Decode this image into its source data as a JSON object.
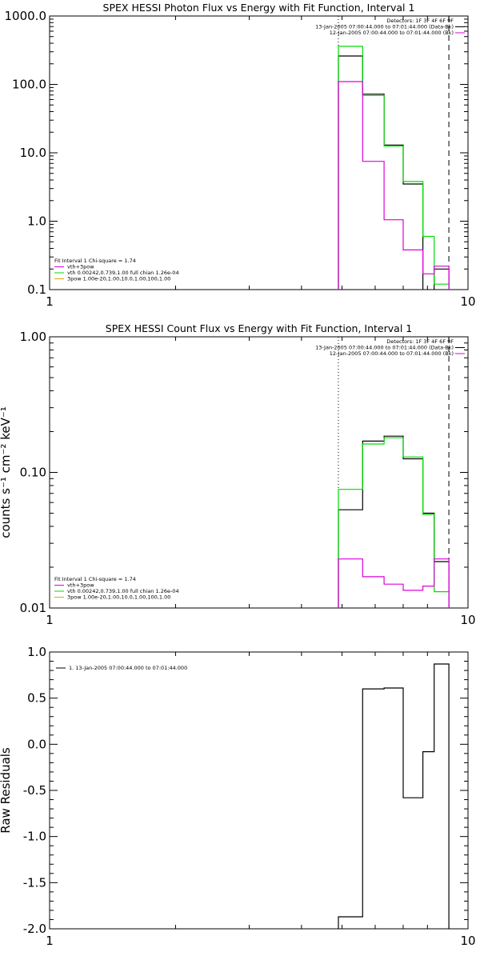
{
  "chart_data": [
    {
      "type": "line",
      "title": "SPEX HESSI Photon Flux vs Energy with Fit Function, Interval 1",
      "xlabel": "",
      "ylabel": "",
      "x_scale": "log",
      "y_scale": "log",
      "xlim": [
        1,
        10
      ],
      "ylim": [
        0.1,
        1000
      ],
      "x_tick_labels": [
        "1",
        "10"
      ],
      "y_tick_labels": [
        "0.1",
        "1.0",
        "10.0",
        "100.0",
        "1000.0"
      ],
      "y_tick_values": [
        0.1,
        1,
        10,
        100,
        1000
      ],
      "vertical_lines": [
        {
          "x": 4.9,
          "style": "dotted"
        },
        {
          "x": 9.0,
          "style": "dashed"
        }
      ],
      "series": [
        {
          "color": "#000000",
          "type": "step",
          "x_edges": [
            4.9,
            5.6,
            6.3,
            7.0,
            7.8,
            8.3,
            9.0
          ],
          "values": [
            260,
            72,
            13,
            3.5,
            null,
            0.2
          ]
        },
        {
          "color": "#00dd00",
          "type": "step",
          "x_edges": [
            4.9,
            5.6,
            6.3,
            7.0,
            7.8,
            8.3,
            9.0
          ],
          "values": [
            360,
            69,
            12.5,
            3.8,
            0.6,
            0.12
          ]
        },
        {
          "color": "#dd00dd",
          "type": "step",
          "x_edges": [
            4.9,
            5.6,
            6.3,
            7.0,
            7.8,
            8.3,
            9.0
          ],
          "values": [
            110,
            7.5,
            1.05,
            0.38,
            0.17,
            0.22
          ]
        }
      ],
      "legend_top_right": [
        {
          "text": "Detectors: 1F 3F 4F 6F 9F",
          "color": ""
        },
        {
          "text": "13-Jan-2005 07:00:44.000 to 07:01:44.000 (Data-Bk)",
          "color": "#000000"
        },
        {
          "text": "12-Jan-2005 07:00:44.000 to 07:01:44.000 (Bk)",
          "color": "#dd00dd"
        }
      ],
      "legend_bottom_left": [
        {
          "text": "Fit Interval 1    Chi-square = 1.74",
          "color": ""
        },
        {
          "text": "vth+3pow",
          "color": "#dd00dd"
        },
        {
          "text": "vth 0.00242,0.739,1.00  full chian 1.26e-04",
          "color": "#00dd00"
        },
        {
          "text": "3pow 1.00e-20,1.00,10.0,1.00,100,1.00",
          "color": "#ddaa00"
        }
      ]
    },
    {
      "type": "line",
      "title": "SPEX HESSI Count Flux vs Energy with Fit Function, Interval 1",
      "xlabel": "",
      "ylabel": "counts s⁻¹ cm⁻² keV⁻¹",
      "x_scale": "log",
      "y_scale": "log",
      "xlim": [
        1,
        10
      ],
      "ylim": [
        0.01,
        1
      ],
      "x_tick_labels": [
        "1",
        "10"
      ],
      "y_tick_labels": [
        "0.01",
        "0.10",
        "1.00"
      ],
      "y_tick_values": [
        0.01,
        0.1,
        1
      ],
      "vertical_lines": [
        {
          "x": 4.9,
          "style": "dotted"
        },
        {
          "x": 9.0,
          "style": "dashed"
        }
      ],
      "series": [
        {
          "color": "#000000",
          "type": "step",
          "x_edges": [
            4.9,
            5.6,
            6.3,
            7.0,
            7.8,
            8.3,
            9.0
          ],
          "values": [
            0.053,
            0.17,
            0.185,
            0.126,
            0.05,
            0.022
          ]
        },
        {
          "color": "#00dd00",
          "type": "step",
          "x_edges": [
            4.9,
            5.6,
            6.3,
            7.0,
            7.8,
            8.3,
            9.0
          ],
          "values": [
            0.075,
            0.162,
            0.18,
            0.13,
            0.049,
            0.0132
          ]
        },
        {
          "color": "#dd00dd",
          "type": "step",
          "x_edges": [
            4.9,
            5.6,
            6.3,
            7.0,
            7.8,
            8.3,
            9.0
          ],
          "values": [
            0.023,
            0.017,
            0.015,
            0.0135,
            0.0145,
            0.023
          ]
        }
      ],
      "legend_top_right": [
        {
          "text": "Detectors: 1F 3F 4F 6F 9F",
          "color": ""
        },
        {
          "text": "13-Jan-2005 07:00:44.000 to 07:01:44.000 (Data-Bk)",
          "color": "#000000"
        },
        {
          "text": "12-Jan-2005 07:00:44.000 to 07:01:44.000 (Bk)",
          "color": "#dd00dd"
        }
      ],
      "legend_bottom_left": [
        {
          "text": "Fit Interval 1    Chi-square = 1.74",
          "color": ""
        },
        {
          "text": "vth+3pow",
          "color": "#dd00dd"
        },
        {
          "text": "vth 0.00242,0.739,1.00  full chian 1.26e-04",
          "color": "#00dd00"
        },
        {
          "text": "3pow 1.00e-20,1.00,10.0,1.00,100,1.00",
          "color": "#ddaa00"
        }
      ]
    },
    {
      "type": "line",
      "title": "",
      "xlabel": "",
      "ylabel": "Raw Residuals",
      "x_scale": "log",
      "y_scale": "linear",
      "xlim": [
        1,
        10
      ],
      "ylim": [
        -2.0,
        1.0
      ],
      "x_tick_labels": [
        "1",
        "10"
      ],
      "y_tick_labels": [
        "-2.0",
        "-1.5",
        "-1.0",
        "-0.5",
        "0.0",
        "0.5",
        "1.0"
      ],
      "y_tick_values": [
        -2.0,
        -1.5,
        -1.0,
        -0.5,
        0.0,
        0.5,
        1.0
      ],
      "vertical_lines": [],
      "series": [
        {
          "color": "#000000",
          "type": "step",
          "x_edges": [
            4.9,
            5.6,
            6.3,
            7.0,
            7.8,
            8.3,
            9.0
          ],
          "values": [
            -1.87,
            0.6,
            0.61,
            -0.58,
            -0.08,
            0.87
          ]
        }
      ],
      "legend_top_left": [
        {
          "text": "1. 13-Jan-2005 07:00:44.000 to 07:01:44.000",
          "color": "#000000"
        }
      ]
    }
  ]
}
